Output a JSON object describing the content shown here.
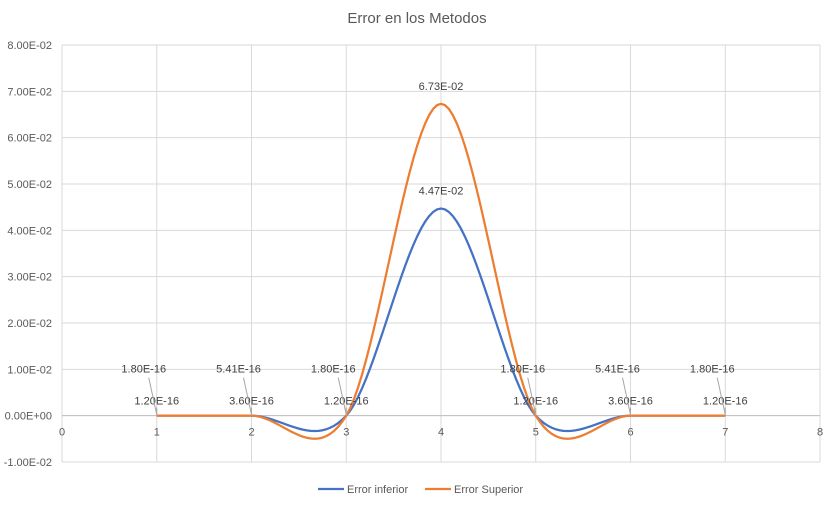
{
  "chart_data": {
    "type": "line",
    "title": "Error en los Metodos",
    "xlabel": "",
    "ylabel": "",
    "xlim": [
      0,
      8
    ],
    "ylim": [
      -0.01,
      0.08
    ],
    "x_ticks": [
      "0",
      "1",
      "2",
      "3",
      "4",
      "5",
      "6",
      "7",
      "8"
    ],
    "y_ticks": [
      "-1.00E-02",
      "0.00E+00",
      "1.00E-02",
      "2.00E-02",
      "3.00E-02",
      "4.00E-02",
      "5.00E-02",
      "6.00E-02",
      "7.00E-02",
      "8.00E-02"
    ],
    "grid": true,
    "legend_position": "bottom",
    "series": [
      {
        "name": "Error inferior",
        "color": "#4472c4",
        "x": [
          1,
          2,
          3,
          4,
          5,
          6,
          7
        ],
        "values": [
          1.2e-16,
          3.6e-16,
          1.2e-16,
          0.0447,
          1.2e-16,
          3.6e-16,
          1.2e-16
        ],
        "labels": [
          "1.20E-16",
          "3.60E-16",
          "1.20E-16",
          "4.47E-02",
          "1.20E-16",
          "3.60E-16",
          "1.20E-16"
        ]
      },
      {
        "name": "Error Superior",
        "color": "#ed7d31",
        "x": [
          1,
          2,
          3,
          4,
          5,
          6,
          7
        ],
        "values": [
          1.8e-16,
          5.41e-16,
          1.8e-16,
          0.0673,
          1.8e-16,
          5.41e-16,
          1.8e-16
        ],
        "labels": [
          "1.80E-16",
          "5.41E-16",
          "1.80E-16",
          "6.73E-02",
          "1.80E-16",
          "5.41E-16",
          "1.80E-16"
        ]
      }
    ]
  }
}
